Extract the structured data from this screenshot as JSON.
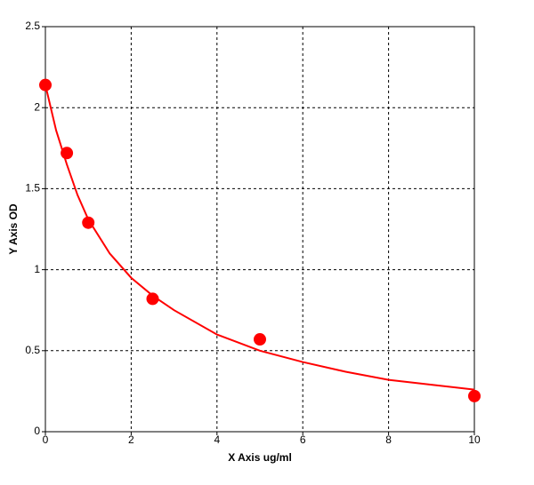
{
  "chart_data": {
    "type": "scatter",
    "x_label": "X Axis ug/ml",
    "y_label": "Y Axis OD",
    "series": [
      {
        "mode": "line",
        "color": "#ff0000",
        "x": [
          0,
          0.25,
          0.5,
          0.75,
          1,
          1.5,
          2,
          2.5,
          3,
          4,
          5,
          6,
          7,
          8,
          9,
          10
        ],
        "values": [
          2.14,
          1.86,
          1.65,
          1.46,
          1.31,
          1.1,
          0.95,
          0.84,
          0.75,
          0.6,
          0.5,
          0.43,
          0.37,
          0.32,
          0.29,
          0.26
        ]
      },
      {
        "mode": "markers",
        "color": "#ff0000",
        "x": [
          0,
          0.5,
          1,
          2.5,
          5,
          10
        ],
        "values": [
          2.14,
          1.72,
          1.29,
          0.82,
          0.57,
          0.22
        ]
      }
    ],
    "xlim": [
      0,
      10
    ],
    "xticks": [
      0,
      2,
      4,
      6,
      8,
      10
    ],
    "ylim": [
      0,
      2.5
    ],
    "yticks": [
      0,
      0.5,
      1,
      1.5,
      2,
      2.5
    ],
    "grid": true
  }
}
